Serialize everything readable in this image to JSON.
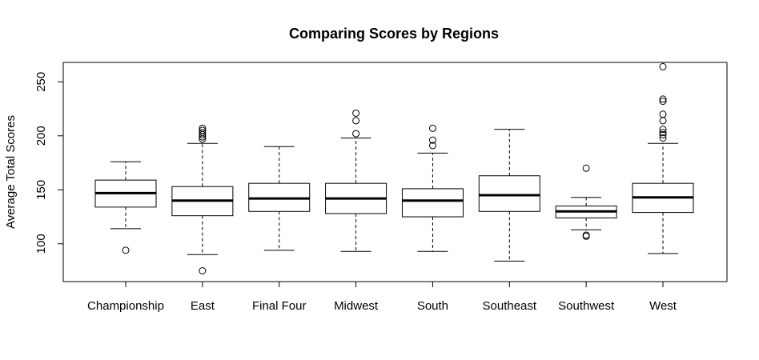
{
  "chart_data": {
    "type": "boxplot",
    "title": "Comparing Scores by Regions",
    "xlabel": "",
    "ylabel": "Average Total Scores",
    "ylim": [
      65,
      268
    ],
    "yticks": [
      100,
      150,
      200,
      250
    ],
    "grid": false,
    "categories": [
      "Championship",
      "East",
      "Final Four",
      "Midwest",
      "South",
      "Southeast",
      "Southwest",
      "West"
    ],
    "boxes": [
      {
        "min": 114,
        "q1": 134,
        "median": 147,
        "q3": 159,
        "max": 176,
        "outliers": [
          94
        ]
      },
      {
        "min": 90,
        "q1": 126,
        "median": 140,
        "q3": 153,
        "max": 193,
        "outliers": [
          75,
          197,
          199,
          201,
          203,
          205,
          207
        ]
      },
      {
        "min": 94,
        "q1": 130,
        "median": 142,
        "q3": 156,
        "max": 190,
        "outliers": []
      },
      {
        "min": 93,
        "q1": 128,
        "median": 142,
        "q3": 156,
        "max": 198,
        "outliers": [
          202,
          214,
          221
        ]
      },
      {
        "min": 93,
        "q1": 125,
        "median": 140,
        "q3": 151,
        "max": 184,
        "outliers": [
          191,
          196,
          207
        ]
      },
      {
        "min": 84,
        "q1": 130,
        "median": 145,
        "q3": 163,
        "max": 206,
        "outliers": []
      },
      {
        "min": 113,
        "q1": 124,
        "median": 130,
        "q3": 135,
        "max": 143,
        "outliers": [
          107,
          108,
          170
        ]
      },
      {
        "min": 91,
        "q1": 129,
        "median": 143,
        "q3": 156,
        "max": 193,
        "outliers": [
          198,
          201,
          203,
          206,
          214,
          220,
          232,
          234,
          264
        ]
      }
    ]
  }
}
